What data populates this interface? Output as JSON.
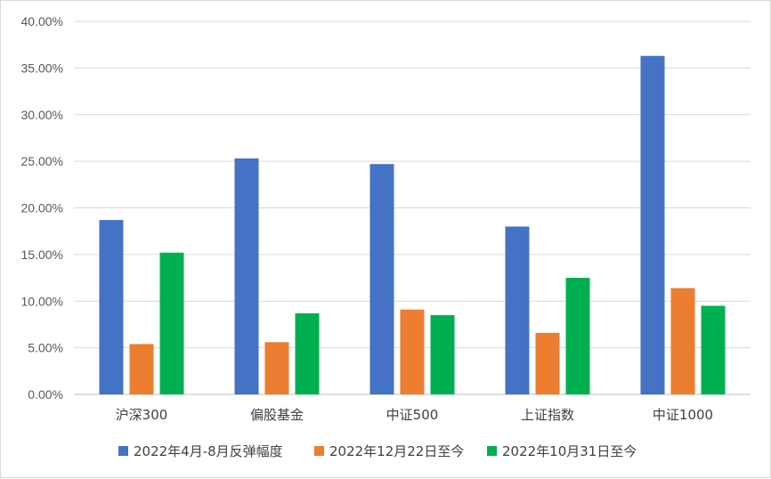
{
  "chart_data": {
    "type": "bar",
    "categories": [
      "沪深300",
      "偏股基金",
      "中证500",
      "上证指数",
      "中证1000"
    ],
    "series": [
      {
        "name": "2022年4月-8月反弹幅度",
        "color": "#4472c4",
        "values": [
          18.7,
          25.3,
          24.7,
          18.0,
          36.3
        ]
      },
      {
        "name": "2022年12月22日至今",
        "color": "#ed7d31",
        "values": [
          5.4,
          5.6,
          9.1,
          6.6,
          11.4
        ]
      },
      {
        "name": "2022年10月31日至今",
        "color": "#00b050",
        "values": [
          15.2,
          8.7,
          8.5,
          12.5,
          9.5
        ]
      }
    ],
    "ylim": [
      0,
      40
    ],
    "yticks": [
      "0.00%",
      "5.00%",
      "10.00%",
      "15.00%",
      "20.00%",
      "25.00%",
      "30.00%",
      "35.00%",
      "40.00%"
    ],
    "grid": true,
    "legend_position": "bottom",
    "title": "",
    "xlabel": "",
    "ylabel": ""
  }
}
